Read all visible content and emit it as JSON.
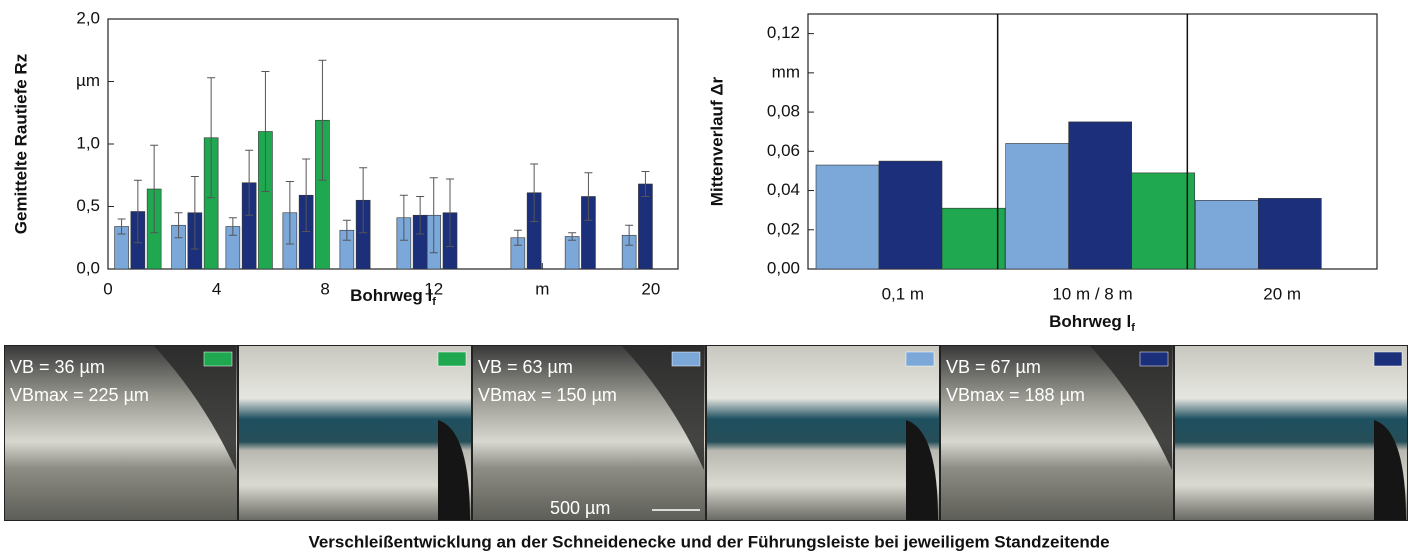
{
  "chart_data": [
    {
      "type": "bar",
      "y_label": "Gemittelte Rautiefe Rz",
      "x_label": "Bohrweg l",
      "x_label_sub": "f",
      "xlim": [
        0,
        21
      ],
      "xticks": [
        0,
        4,
        8,
        12,
        {
          "value": 16,
          "label": "m"
        },
        20
      ],
      "ylim": [
        0,
        2
      ],
      "yticks": [
        {
          "value": 0,
          "label": "0,0"
        },
        {
          "value": 0.5,
          "label": "0,5"
        },
        {
          "value": 1,
          "label": "1,0"
        },
        {
          "value": 1.5,
          "label": "µm"
        },
        {
          "value": 2,
          "label": "2,0"
        }
      ],
      "series": [
        {
          "color": "#7ba7d9",
          "x": [
            0.5,
            2.6,
            4.6,
            6.7,
            8.8,
            10.9,
            12,
            15.1,
            17.1,
            19.2
          ],
          "values": [
            0.34,
            0.35,
            0.34,
            0.45,
            0.31,
            0.41,
            0.43,
            0.25,
            0.26,
            0.27
          ],
          "errors": [
            0.06,
            0.1,
            0.07,
            0.25,
            0.08,
            0.18,
            0.3,
            0.06,
            0.03,
            0.08
          ]
        },
        {
          "color": "#1b2f7a",
          "x": [
            1.1,
            3.2,
            5.2,
            7.3,
            9.4,
            11.5,
            12.6,
            15.7,
            17.7,
            19.8
          ],
          "values": [
            0.46,
            0.45,
            0.69,
            0.59,
            0.55,
            0.43,
            0.45,
            0.61,
            0.58,
            0.68
          ],
          "errors": [
            0.25,
            0.29,
            0.26,
            0.29,
            0.26,
            0.15,
            0.27,
            0.23,
            0.19,
            0.1
          ]
        },
        {
          "color": "#1fa84f",
          "x": [
            1.7,
            3.8,
            5.8,
            7.9
          ],
          "values": [
            0.64,
            1.05,
            1.1,
            1.19
          ],
          "errors": [
            0.35,
            0.48,
            0.48,
            0.48
          ]
        }
      ]
    },
    {
      "type": "bar",
      "y_label": "Mittenverlauf Δr",
      "x_label": "Bohrweg l",
      "x_label_sub": "f",
      "categories": [
        "0,1 m",
        "10 m / 8 m",
        "20 m"
      ],
      "ylim": [
        0,
        0.13
      ],
      "yticks": [
        {
          "value": 0,
          "label": "0,00"
        },
        {
          "value": 0.02,
          "label": "0,02"
        },
        {
          "value": 0.04,
          "label": "0,04"
        },
        {
          "value": 0.06,
          "label": "0,06"
        },
        {
          "value": 0.08,
          "label": "0,08"
        },
        {
          "value": 0.1,
          "label": "mm"
        },
        {
          "value": 0.12,
          "label": "0,12"
        }
      ],
      "series": [
        {
          "color": "#7ba7d9",
          "values": [
            0.053,
            0.064,
            0.035
          ]
        },
        {
          "color": "#1b2f7a",
          "values": [
            0.055,
            0.075,
            0.036
          ]
        },
        {
          "color": "#1fa84f",
          "values": [
            0.031,
            0.049,
            null
          ]
        }
      ]
    }
  ],
  "panels": [
    {
      "lines": [
        "VB = 36 µm",
        "VBmax = 225 µm"
      ],
      "color": "#1fa84f"
    },
    {
      "lines": [
        "VB = 63 µm",
        "VBmax = 150 µm"
      ],
      "color": "#7ba7d9"
    },
    {
      "lines": [
        "VB = 67 µm",
        "VBmax = 188 µm"
      ],
      "color": "#1b2f7a"
    }
  ],
  "scale_bar": "500 µm",
  "caption": "Verschleißentwicklung an der Schneidenecke und der Führungsleiste bei jeweiligem Standzeitende"
}
